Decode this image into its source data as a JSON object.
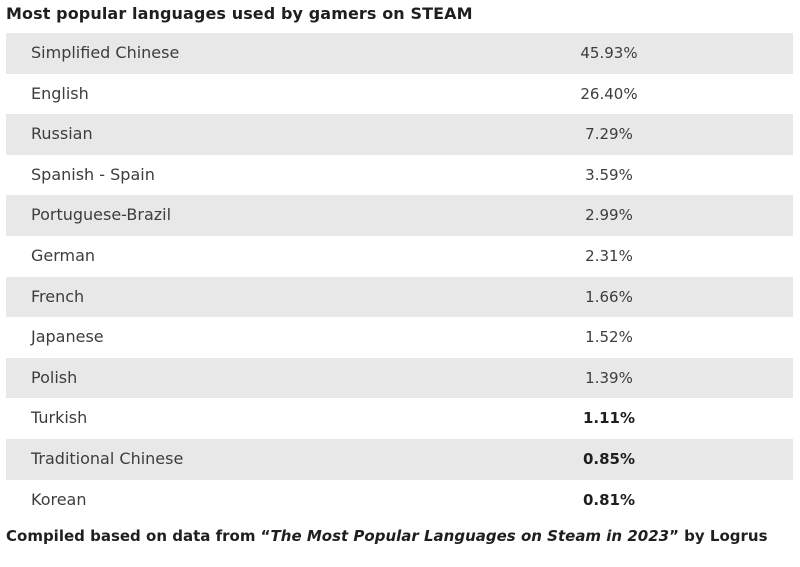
{
  "chart_data": {
    "type": "table",
    "title": "Most popular languages used by gamers on STEAM",
    "rows": [
      {
        "language": "Simplified Chinese",
        "share": "45.93%",
        "bold": false
      },
      {
        "language": "English",
        "share": "26.40%",
        "bold": false
      },
      {
        "language": "Russian",
        "share": "7.29%",
        "bold": false
      },
      {
        "language": "Spanish - Spain",
        "share": "3.59%",
        "bold": false
      },
      {
        "language": "Portuguese-Brazil",
        "share": "2.99%",
        "bold": false
      },
      {
        "language": "German",
        "share": "2.31%",
        "bold": false
      },
      {
        "language": "French",
        "share": "1.66%",
        "bold": false
      },
      {
        "language": "Japanese",
        "share": "1.52%",
        "bold": false
      },
      {
        "language": "Polish",
        "share": "1.39%",
        "bold": false
      },
      {
        "language": "Turkish",
        "share": "1.11%",
        "bold": true
      },
      {
        "language": "Traditional Chinese",
        "share": "0.85%",
        "bold": true
      },
      {
        "language": "Korean",
        "share": "0.81%",
        "bold": true
      }
    ],
    "values": [
      45.93,
      26.4,
      7.29,
      3.59,
      2.99,
      2.31,
      1.66,
      1.52,
      1.39,
      1.11,
      0.85,
      0.81
    ],
    "row_shading": {
      "shaded_color": "#e8e8e8",
      "plain_color": "#ffffff",
      "pattern": "alternating, first row shaded"
    }
  },
  "footer": {
    "prefix": "Compiled based on data from “",
    "source_title": "The Most Popular Languages on Steam in 2023",
    "suffix": "” by Logrus"
  }
}
